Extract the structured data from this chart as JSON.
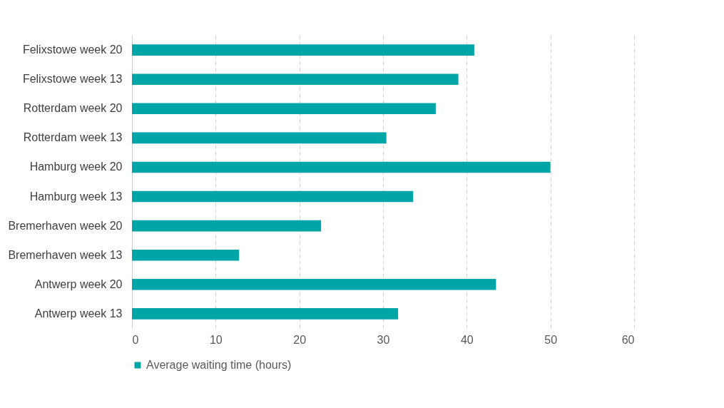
{
  "chart_data": {
    "type": "bar",
    "orientation": "horizontal",
    "categories": [
      "Felixstowe week 20",
      "Felixstowe week 13",
      "Rotterdam week 20",
      "Rotterdam week 13",
      "Hamburg week 20",
      "Hamburg week 13",
      "Bremerhaven week 20",
      "Bremerhaven week 13",
      "Antwerp week 20",
      "Antwerp week 13"
    ],
    "series": [
      {
        "name": "Average waiting time (hours)",
        "color": "#00a5a8",
        "values": [
          40.9,
          39.0,
          36.3,
          30.4,
          50.0,
          33.6,
          22.6,
          12.8,
          43.5,
          31.8
        ]
      }
    ],
    "xlim": [
      0,
      60
    ],
    "xticks": [
      0,
      10,
      20,
      30,
      40,
      50,
      60
    ],
    "grid": "x",
    "legend": "bottom"
  }
}
